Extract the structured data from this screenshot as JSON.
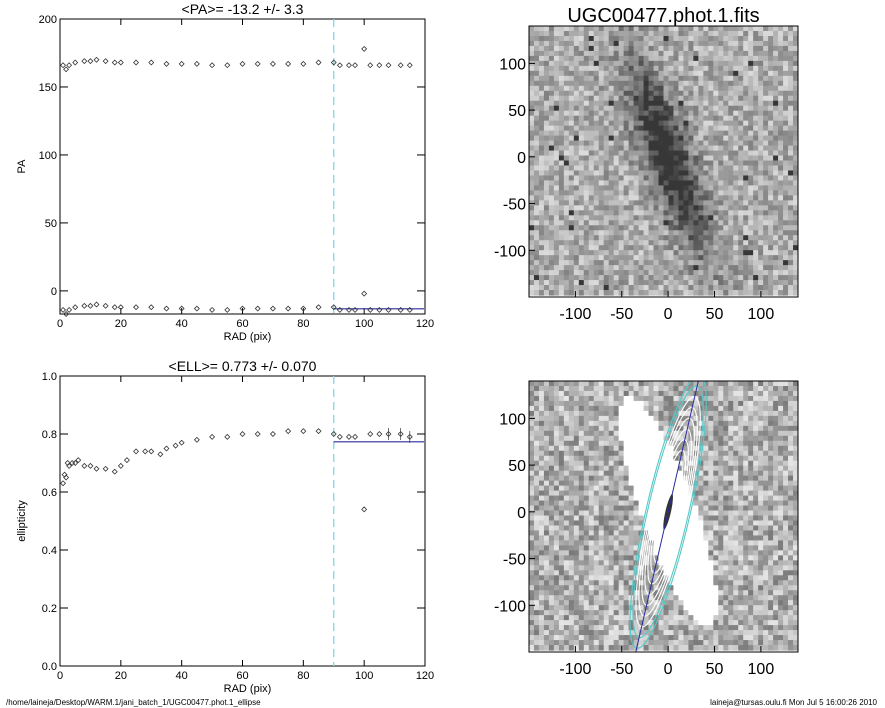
{
  "footer": {
    "left": "/home/laineja/Desktop/WARM.1/jani_batch_1/UGC00477.phot.1_ellipse",
    "right": "laineja@tursas.oulu.fi  Mon Jul  5 16:00:26 2010"
  },
  "colors": {
    "fit_line": "#2b2b9e",
    "marker_line": "#7fd8e6",
    "contours": "#ffffff",
    "outer_contours": "#58c8c8"
  },
  "chart_data": [
    {
      "type": "scatter",
      "title": "<PA>= -13.2 +/-   3.3",
      "xlabel": "RAD (pix)",
      "ylabel": "PA",
      "xlim": [
        0,
        120
      ],
      "ylim": [
        -17,
        200
      ],
      "x_ticks": [
        0,
        20,
        40,
        60,
        80,
        100,
        120
      ],
      "y_ticks": [
        0,
        50,
        100,
        150,
        200
      ],
      "grid": false,
      "vertical_marker_x": 90,
      "mean_line_y": -13.2,
      "mean_line_x_range": [
        90,
        120
      ],
      "series": [
        {
          "x": [
            1,
            2,
            3,
            5,
            8,
            10,
            12,
            15,
            18,
            20,
            25,
            30,
            35,
            40,
            45,
            50,
            55,
            60,
            65,
            70,
            75,
            80,
            85,
            90,
            92,
            95,
            97,
            100,
            102,
            105,
            108,
            112,
            115
          ],
          "y": [
            166,
            163,
            166,
            168,
            169,
            169,
            170,
            169,
            168,
            168,
            168,
            168,
            167,
            167,
            167,
            166,
            166,
            167,
            167,
            167,
            167,
            167,
            168,
            168,
            166,
            166,
            166,
            178,
            166,
            166,
            166,
            166,
            166
          ]
        },
        {
          "x": [
            1,
            2,
            3,
            5,
            8,
            10,
            12,
            15,
            18,
            20,
            25,
            30,
            35,
            40,
            45,
            50,
            55,
            60,
            65,
            70,
            75,
            80,
            85,
            90,
            92,
            95,
            97,
            100,
            102,
            105,
            108,
            112,
            115
          ],
          "y": [
            -14,
            -17,
            -14,
            -12,
            -11,
            -11,
            -10,
            -11,
            -12,
            -12,
            -12,
            -12,
            -13,
            -13,
            -13,
            -14,
            -14,
            -13,
            -13,
            -13,
            -13,
            -13,
            -12,
            -12,
            -14,
            -14,
            -14,
            -2,
            -14,
            -14,
            -14,
            -14,
            -14
          ]
        }
      ]
    },
    {
      "type": "scatter",
      "title": "<ELL>= 0.773 +/-  0.070",
      "xlabel": "RAD (pix)",
      "ylabel": "ellipticity",
      "xlim": [
        0,
        120
      ],
      "ylim": [
        0,
        1.0
      ],
      "x_ticks": [
        0,
        20,
        40,
        60,
        80,
        100,
        120
      ],
      "y_ticks": [
        0.0,
        0.2,
        0.4,
        0.6,
        0.8,
        1.0
      ],
      "grid": false,
      "vertical_marker_x": 90,
      "mean_line_y": 0.773,
      "mean_line_x_range": [
        90,
        120
      ],
      "series": [
        {
          "x": [
            1,
            1.5,
            2,
            2.5,
            3,
            4,
            5,
            6,
            8,
            10,
            12,
            15,
            18,
            20,
            22,
            25,
            28,
            30,
            33,
            35,
            38,
            40,
            45,
            50,
            55,
            60,
            65,
            70,
            75,
            80,
            85,
            90,
            92,
            95,
            97,
            100,
            102,
            105,
            108,
            112,
            115
          ],
          "y": [
            0.63,
            0.66,
            0.65,
            0.7,
            0.69,
            0.7,
            0.7,
            0.71,
            0.69,
            0.69,
            0.68,
            0.68,
            0.67,
            0.69,
            0.71,
            0.74,
            0.74,
            0.74,
            0.73,
            0.75,
            0.76,
            0.77,
            0.78,
            0.79,
            0.79,
            0.8,
            0.8,
            0.8,
            0.81,
            0.81,
            0.81,
            0.8,
            0.79,
            0.79,
            0.79,
            0.54,
            0.8,
            0.8,
            0.8,
            0.8,
            0.79
          ]
        }
      ]
    },
    {
      "type": "heatmap",
      "title": "UGC00477.phot.1.fits",
      "xlim": [
        -150,
        140
      ],
      "ylim": [
        -150,
        140
      ],
      "x_ticks": [
        -100,
        -50,
        0,
        50,
        100
      ],
      "y_ticks": [
        -100,
        -50,
        0,
        50,
        100
      ]
    },
    {
      "type": "heatmap",
      "title": "",
      "xlim": [
        -150,
        140
      ],
      "ylim": [
        -150,
        140
      ],
      "x_ticks": [
        -100,
        -50,
        0,
        50,
        100
      ],
      "y_ticks": [
        -100,
        -50,
        0,
        50,
        100
      ]
    }
  ]
}
